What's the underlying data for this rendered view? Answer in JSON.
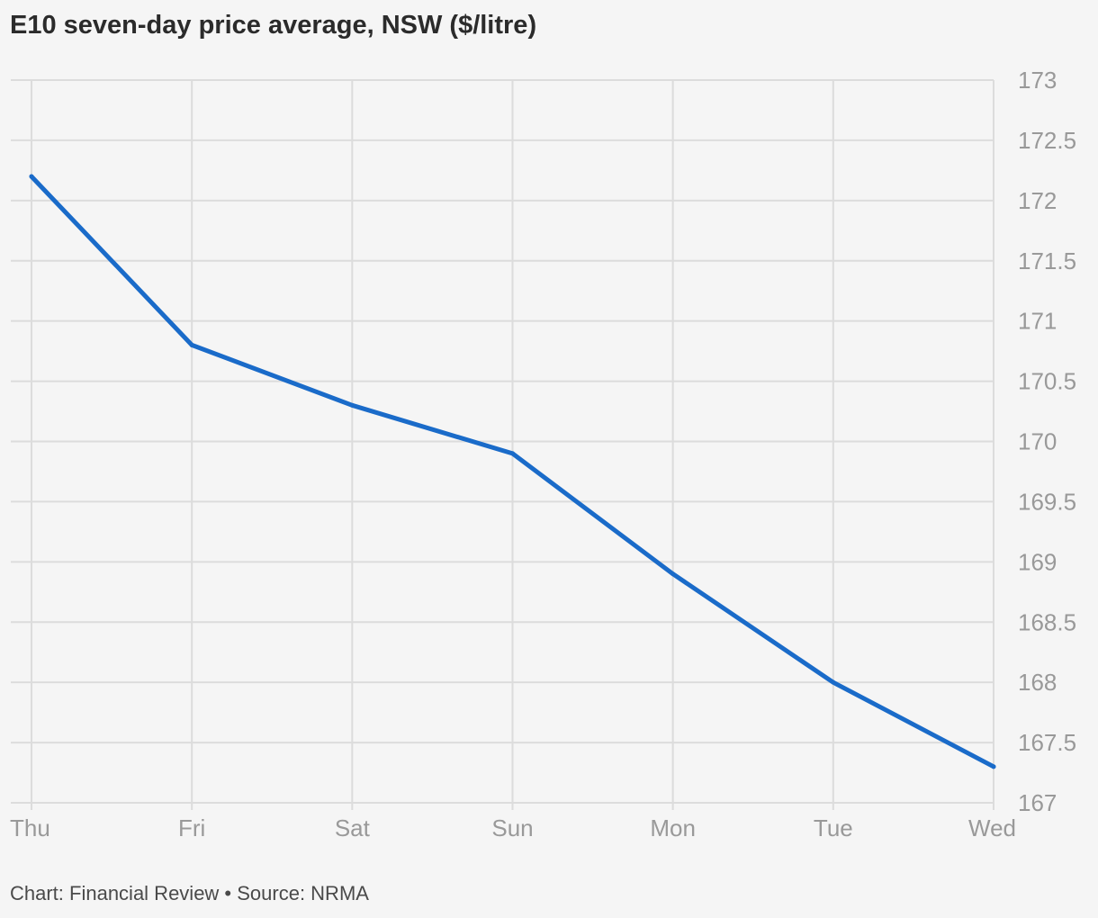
{
  "chart_data": {
    "type": "line",
    "title": "E10 seven-day price average, NSW ($/litre)",
    "xlabel": "",
    "ylabel": "",
    "categories": [
      "Thu",
      "Fri",
      "Sat",
      "Sun",
      "Mon",
      "Tue",
      "Wed"
    ],
    "series": [
      {
        "values": [
          172.2,
          170.8,
          170.3,
          169.9,
          168.9,
          168.0,
          167.3
        ]
      }
    ],
    "ylim": [
      167,
      173
    ],
    "yticks": [
      "167",
      "167.5",
      "168",
      "168.5",
      "169",
      "169.5",
      "170",
      "170.5",
      "171",
      "171.5",
      "172",
      "172.5",
      "173"
    ],
    "y_axis_position": "right",
    "grid": true,
    "line_color": "#1a6bc9",
    "grid_color": "#dcdcdc"
  },
  "footer": {
    "source_text": "Chart: Financial Review • Source: NRMA"
  }
}
